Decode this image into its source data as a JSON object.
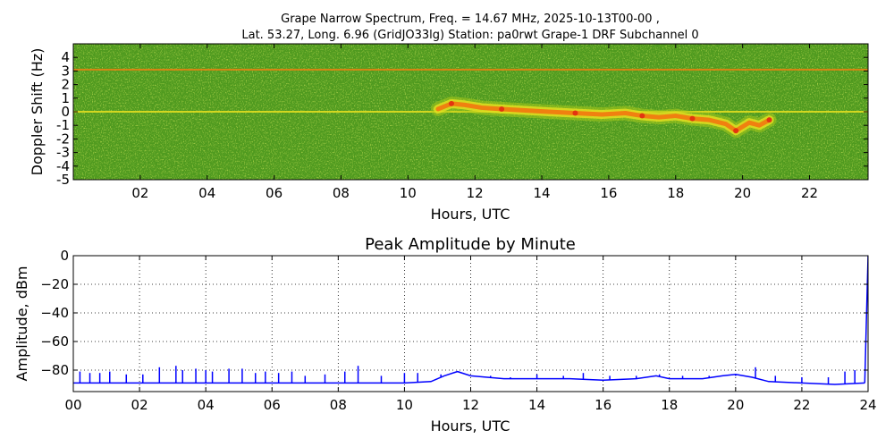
{
  "chart_data": [
    {
      "type": "heatmap",
      "title_line1": "Grape Narrow Spectrum, Freq. = 14.67 MHz, 2025-10-13T00-00 ,",
      "title_line2": "Lat.  53.27, Long.   6.96 (GridJO33lg) Station: pa0rwt Grape-1 DRF Subchannel 0",
      "xlabel": "Hours, UTC",
      "ylabel": "Doppler Shift (Hz)",
      "xlim": [
        0,
        23.75
      ],
      "ylim": [
        -5,
        5
      ],
      "x_ticks": [
        2,
        4,
        6,
        8,
        10,
        12,
        14,
        16,
        18,
        20,
        22
      ],
      "x_tick_labels": [
        "02",
        "04",
        "06",
        "08",
        "10",
        "12",
        "14",
        "16",
        "18",
        "20",
        "22"
      ],
      "y_ticks": [
        -5,
        -4,
        -3,
        -2,
        -1,
        0,
        1,
        2,
        3,
        4
      ],
      "y_tick_labels": [
        "-5",
        "-4",
        "-3",
        "-2",
        "-1",
        "0",
        "1",
        "2",
        "3",
        "4"
      ],
      "colors": {
        "background": "#4f9a1f",
        "mid": "#a8c81a",
        "high": "#e8e020",
        "peak": "#f08010",
        "max": "#e02010"
      },
      "persistent_lines": [
        {
          "y": 3.1,
          "x_range": [
            0,
            23.75
          ]
        },
        {
          "y": 0.0,
          "x_range": [
            0,
            23.75
          ]
        }
      ],
      "doppler_trace": {
        "x": [
          10.9,
          11.3,
          11.7,
          12.2,
          12.8,
          13.5,
          14.2,
          15.0,
          15.8,
          16.5,
          17.0,
          17.5,
          18.0,
          18.5,
          19.0,
          19.5,
          19.8,
          20.2,
          20.5,
          20.8
        ],
        "y": [
          0.2,
          0.6,
          0.5,
          0.3,
          0.2,
          0.1,
          0.0,
          -0.1,
          -0.2,
          -0.1,
          -0.3,
          -0.4,
          -0.3,
          -0.5,
          -0.6,
          -0.9,
          -1.4,
          -0.8,
          -1.0,
          -0.6
        ]
      }
    },
    {
      "type": "line",
      "title": "Peak Amplitude by Minute",
      "xlabel": "Hours, UTC",
      "ylabel": "Amplitude, dBm",
      "xlim": [
        0,
        24
      ],
      "ylim": [
        -95,
        0
      ],
      "grid": true,
      "line_color": "#0000ff",
      "x_ticks": [
        0,
        2,
        4,
        6,
        8,
        10,
        12,
        14,
        16,
        18,
        20,
        22,
        24
      ],
      "x_tick_labels": [
        "00",
        "02",
        "04",
        "06",
        "08",
        "10",
        "12",
        "14",
        "16",
        "18",
        "20",
        "22",
        "24"
      ],
      "y_ticks": [
        0,
        -20,
        -40,
        -60,
        -80
      ],
      "y_tick_labels": [
        "0",
        "−20",
        "−40",
        "−60",
        "−80"
      ],
      "series": [
        {
          "x": [
            0,
            1,
            2,
            3,
            4,
            5,
            6,
            7,
            8,
            9,
            10,
            10.8,
            11.2,
            11.6,
            12,
            13,
            14,
            15,
            16,
            17,
            17.6,
            18,
            19,
            19.6,
            20,
            20.5,
            21,
            22,
            23,
            23.9,
            24
          ],
          "values": [
            -89,
            -89,
            -89,
            -89,
            -89,
            -89,
            -89,
            -89,
            -89,
            -89,
            -89,
            -88,
            -84,
            -81,
            -84,
            -86,
            -86,
            -86,
            -87,
            -86,
            -84,
            -86,
            -86,
            -84,
            -83,
            -85,
            -88,
            -89,
            -90,
            -89,
            0
          ]
        }
      ],
      "spikes": {
        "x": [
          0.2,
          0.5,
          0.8,
          1.1,
          1.6,
          2.1,
          2.6,
          3.1,
          3.3,
          3.7,
          4.0,
          4.2,
          4.7,
          5.1,
          5.5,
          5.8,
          6.2,
          6.6,
          7.0,
          7.6,
          8.2,
          8.6,
          9.3,
          10.0,
          10.4,
          11.1,
          12.6,
          13.2,
          14.0,
          14.8,
          15.4,
          16.2,
          17.0,
          17.7,
          18.4,
          19.2,
          20.0,
          20.6,
          21.2,
          22.0,
          22.8,
          23.3,
          23.6
        ],
        "values": [
          -81,
          -82,
          -82,
          -81,
          -83,
          -83,
          -78,
          -77,
          -80,
          -79,
          -80,
          -81,
          -79,
          -79,
          -82,
          -81,
          -82,
          -81,
          -84,
          -83,
          -81,
          -77,
          -84,
          -82,
          -82,
          -83,
          -84,
          -85,
          -83,
          -84,
          -82,
          -84,
          -84,
          -83,
          -84,
          -84,
          -84,
          -78,
          -84,
          -85,
          -85,
          -81,
          -80
        ]
      }
    }
  ]
}
